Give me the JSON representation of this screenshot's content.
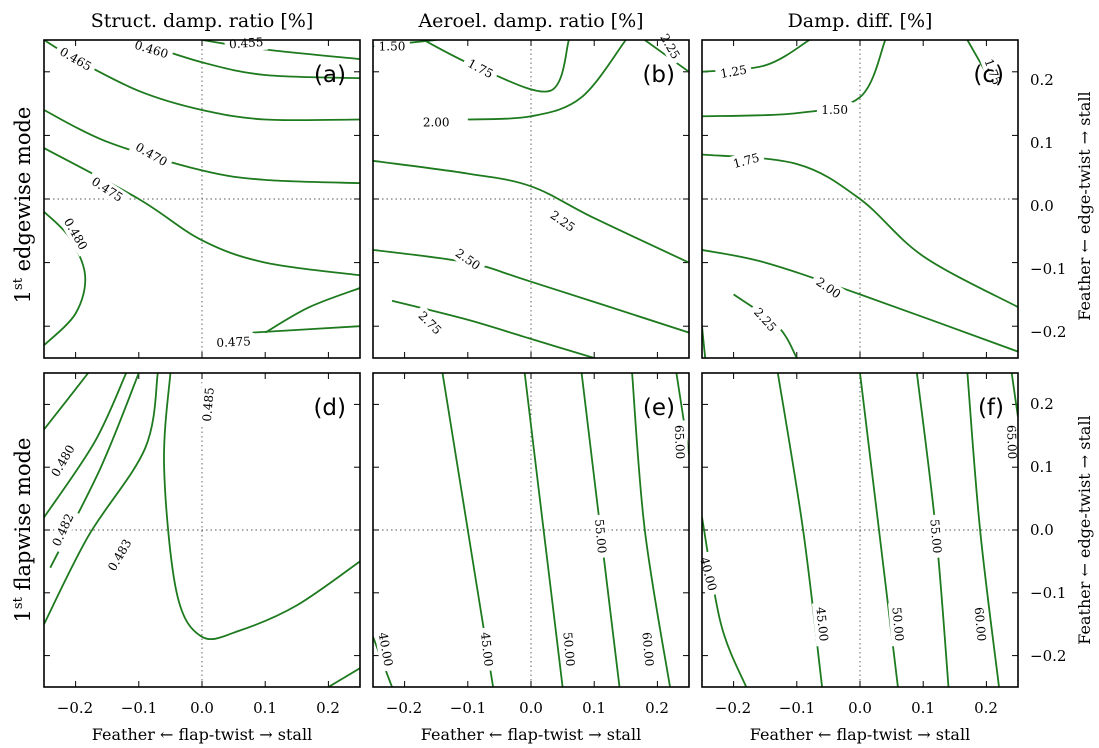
{
  "figure": {
    "column_titles": [
      "Struct. damp. ratio [%]",
      "Aeroel. damp. ratio [%]",
      "Damp. diff. [%]"
    ],
    "row_labels": [
      {
        "main": "1",
        "sup": "st",
        "rest": " edgewise mode"
      },
      {
        "main": "1",
        "sup": "st",
        "rest": " flapwise mode"
      }
    ],
    "xlabel": "Feather ← flap-twist → stall",
    "ylabel": "Feather ← edge-twist → stall",
    "x_tick_labels": [
      "−0.2",
      "−0.1",
      "0.0",
      "0.1",
      "0.2"
    ],
    "y_tick_labels": [
      "0.2",
      "0.1",
      "0.0",
      "−0.1",
      "−0.2"
    ]
  },
  "chart_data": [
    {
      "panel": "(a)",
      "type": "contour",
      "title": "Struct. damp. ratio [%]",
      "ylabel": "1st edgewise mode",
      "xlim": [
        -0.25,
        0.25
      ],
      "ylim": [
        -0.25,
        0.25
      ],
      "color": "#1e7a1e",
      "levels": [
        {
          "label": "0.455",
          "points": [
            [
              0.0,
              0.25
            ],
            [
              0.1,
              0.235
            ],
            [
              0.25,
              0.22
            ]
          ],
          "label_at": [
            0.07,
            0.245
          ],
          "angle": -4
        },
        {
          "label": "0.460",
          "points": [
            [
              -0.11,
              0.25
            ],
            [
              0.0,
              0.215
            ],
            [
              0.1,
              0.195
            ],
            [
              0.25,
              0.19
            ]
          ],
          "label_at": [
            -0.08,
            0.235
          ],
          "angle": 17
        },
        {
          "label": "0.465",
          "points": [
            [
              -0.25,
              0.25
            ],
            [
              -0.2,
              0.22
            ],
            [
              -0.1,
              0.17
            ],
            [
              0.0,
              0.14
            ],
            [
              0.1,
              0.125
            ],
            [
              0.25,
              0.125
            ]
          ],
          "label_at": [
            -0.2,
            0.22
          ],
          "angle": 30
        },
        {
          "label": "0.470",
          "points": [
            [
              -0.25,
              0.14
            ],
            [
              -0.15,
              0.09
            ],
            [
              0.0,
              0.045
            ],
            [
              0.1,
              0.03
            ],
            [
              0.25,
              0.025
            ]
          ],
          "label_at": [
            -0.08,
            0.07
          ],
          "angle": 30
        },
        {
          "label": "0.475",
          "points": [
            [
              -0.25,
              0.08
            ],
            [
              -0.1,
              0.0
            ],
            [
              0.0,
              -0.065
            ],
            [
              0.1,
              -0.1
            ],
            [
              0.25,
              -0.12
            ]
          ],
          "label_at": [
            -0.15,
            0.015
          ],
          "angle": 33
        },
        {
          "label": "0.480",
          "points": [
            [
              -0.25,
              -0.02
            ],
            [
              -0.21,
              -0.06
            ],
            [
              -0.185,
              -0.12
            ],
            [
              -0.2,
              -0.18
            ],
            [
              -0.25,
              -0.23
            ]
          ],
          "label_at": [
            -0.2,
            -0.055
          ],
          "angle": 60
        },
        {
          "label": "0.475",
          "points": [
            [
              0.1,
              -0.21
            ],
            [
              0.17,
              -0.17
            ],
            [
              0.25,
              -0.14
            ]
          ],
          "label_at": [
            0.05,
            -0.225
          ],
          "angle": -3
        },
        {
          "label": "",
          "points": [
            [
              0.08,
              -0.21
            ],
            [
              0.25,
              -0.2
            ]
          ]
        }
      ]
    },
    {
      "panel": "(b)",
      "type": "contour",
      "title": "Aeroel. damp. ratio [%]",
      "xlim": [
        -0.25,
        0.25
      ],
      "ylim": [
        -0.25,
        0.25
      ],
      "color": "#1e7a1e",
      "levels": [
        {
          "label": "1.50",
          "points": [
            [
              -0.25,
              0.24
            ],
            [
              -0.15,
              0.25
            ]
          ],
          "label_at": [
            -0.22,
            0.24
          ],
          "angle": 0
        },
        {
          "label": "1.75",
          "points": [
            [
              -0.17,
              0.25
            ],
            [
              -0.08,
              0.205
            ],
            [
              0.03,
              0.17
            ],
            [
              0.06,
              0.25
            ]
          ],
          "label_at": [
            -0.08,
            0.205
          ],
          "angle": 28
        },
        {
          "label": "2.00",
          "points": [
            [
              -0.1,
              0.125
            ],
            [
              0.0,
              0.13
            ],
            [
              0.08,
              0.16
            ],
            [
              0.15,
              0.25
            ]
          ],
          "label_at": [
            -0.15,
            0.12
          ],
          "angle": 0
        },
        {
          "label": "2.25",
          "points": [
            [
              0.18,
              0.25
            ],
            [
              0.25,
              0.2
            ]
          ],
          "label_at": [
            0.22,
            0.24
          ],
          "angle": 60
        },
        {
          "label": "2.25",
          "points": [
            [
              -0.25,
              0.06
            ],
            [
              -0.1,
              0.04
            ],
            [
              0.0,
              0.02
            ],
            [
              0.1,
              -0.03
            ],
            [
              0.25,
              -0.1
            ]
          ],
          "label_at": [
            0.05,
            -0.035
          ],
          "angle": 35
        },
        {
          "label": "2.50",
          "points": [
            [
              -0.25,
              -0.08
            ],
            [
              -0.1,
              -0.1
            ],
            [
              0.0,
              -0.13
            ],
            [
              0.25,
              -0.21
            ]
          ],
          "label_at": [
            -0.1,
            -0.095
          ],
          "angle": 35
        },
        {
          "label": "2.75",
          "points": [
            [
              -0.22,
              -0.16
            ],
            [
              -0.1,
              -0.19
            ],
            [
              0.0,
              -0.22
            ],
            [
              0.1,
              -0.25
            ]
          ],
          "label_at": [
            -0.16,
            -0.195
          ],
          "angle": 45
        }
      ]
    },
    {
      "panel": "(c)",
      "type": "contour",
      "title": "Damp. diff. [%]",
      "ylabel": "Feather ← edge-twist → stall",
      "xlim": [
        -0.25,
        0.25
      ],
      "ylim": [
        -0.25,
        0.25
      ],
      "color": "#1e7a1e",
      "levels": [
        {
          "label": "1.25",
          "points": [
            [
              -0.25,
              0.2
            ],
            [
              -0.15,
              0.21
            ],
            [
              -0.08,
              0.25
            ]
          ],
          "label_at": [
            -0.2,
            0.2
          ],
          "angle": -10
        },
        {
          "label": "1.50",
          "points": [
            [
              -0.25,
              0.13
            ],
            [
              -0.1,
              0.135
            ],
            [
              0.0,
              0.16
            ],
            [
              0.04,
              0.25
            ]
          ],
          "label_at": [
            -0.04,
            0.14
          ],
          "angle": 0
        },
        {
          "label": "1.75",
          "points": [
            [
              0.17,
              0.25
            ],
            [
              0.21,
              0.18
            ]
          ],
          "label_at": [
            0.21,
            0.2
          ],
          "angle": 70
        },
        {
          "label": "1.75",
          "points": [
            [
              -0.25,
              0.07
            ],
            [
              -0.1,
              0.055
            ],
            [
              0.0,
              0.0
            ],
            [
              0.1,
              -0.09
            ],
            [
              0.25,
              -0.17
            ]
          ],
          "label_at": [
            -0.18,
            0.06
          ],
          "angle": -15
        },
        {
          "label": "2.00",
          "points": [
            [
              -0.25,
              -0.08
            ],
            [
              -0.15,
              -0.1
            ],
            [
              0.0,
              -0.15
            ],
            [
              0.25,
              -0.24
            ]
          ],
          "label_at": [
            -0.05,
            -0.14
          ],
          "angle": 35
        },
        {
          "label": "2.25",
          "points": [
            [
              -0.2,
              -0.15
            ],
            [
              -0.13,
              -0.2
            ],
            [
              -0.1,
              -0.25
            ]
          ],
          "label_at": [
            -0.15,
            -0.19
          ],
          "angle": 48
        },
        {
          "label": "",
          "points": [
            [
              -0.25,
              -0.2
            ],
            [
              -0.245,
              -0.25
            ]
          ]
        }
      ]
    },
    {
      "panel": "(d)",
      "type": "contour",
      "ylabel": "1st flapwise mode",
      "xlabel": "Feather ← flap-twist → stall",
      "xlim": [
        -0.25,
        0.25
      ],
      "ylim": [
        -0.25,
        0.25
      ],
      "color": "#1e7a1e",
      "levels": [
        {
          "label": "",
          "points": [
            [
              -0.25,
              0.16
            ],
            [
              -0.18,
              0.25
            ]
          ]
        },
        {
          "label": "0.480",
          "points": [
            [
              -0.25,
              0.02
            ],
            [
              -0.17,
              0.14
            ],
            [
              -0.12,
              0.25
            ]
          ],
          "label_at": [
            -0.22,
            0.11
          ],
          "angle": -60
        },
        {
          "label": "0.482",
          "points": [
            [
              -0.24,
              -0.06
            ],
            [
              -0.16,
              0.1
            ],
            [
              -0.1,
              0.25
            ]
          ],
          "label_at": [
            -0.22,
            0.0
          ],
          "angle": -65
        },
        {
          "label": "0.483",
          "points": [
            [
              -0.25,
              -0.15
            ],
            [
              -0.18,
              -0.01
            ],
            [
              -0.09,
              0.13
            ],
            [
              -0.07,
              0.25
            ]
          ],
          "label_at": [
            -0.13,
            -0.04
          ],
          "angle": -60
        },
        {
          "label": "0.485",
          "points": [
            [
              -0.05,
              0.25
            ],
            [
              -0.06,
              0.1
            ],
            [
              -0.04,
              -0.1
            ],
            [
              0.0,
              -0.17
            ],
            [
              0.06,
              -0.16
            ],
            [
              0.15,
              -0.12
            ],
            [
              0.25,
              -0.05
            ]
          ],
          "label_at": [
            0.01,
            0.2
          ],
          "angle": -85
        },
        {
          "label": "",
          "points": [
            [
              0.2,
              -0.25
            ],
            [
              0.25,
              -0.22
            ]
          ]
        }
      ]
    },
    {
      "panel": "(e)",
      "type": "contour",
      "xlabel": "Feather ← flap-twist → stall",
      "xlim": [
        -0.25,
        0.25
      ],
      "ylim": [
        -0.25,
        0.25
      ],
      "color": "#1e7a1e",
      "levels": [
        {
          "label": "40.00",
          "points": [
            [
              -0.25,
              -0.17
            ],
            [
              -0.22,
              -0.25
            ]
          ],
          "label_at": [
            -0.23,
            -0.19
          ],
          "angle": 80
        },
        {
          "label": "45.00",
          "points": [
            [
              -0.14,
              0.25
            ],
            [
              -0.1,
              0.0
            ],
            [
              -0.06,
              -0.25
            ]
          ],
          "label_at": [
            -0.07,
            -0.19
          ],
          "angle": 84
        },
        {
          "label": "50.00",
          "points": [
            [
              -0.01,
              0.25
            ],
            [
              0.02,
              0.0
            ],
            [
              0.05,
              -0.25
            ]
          ],
          "label_at": [
            0.06,
            -0.19
          ],
          "angle": 85
        },
        {
          "label": "55.00",
          "points": [
            [
              0.08,
              0.25
            ],
            [
              0.11,
              0.0
            ],
            [
              0.14,
              -0.25
            ]
          ],
          "label_at": [
            0.11,
            -0.01
          ],
          "angle": 85
        },
        {
          "label": "60.00",
          "points": [
            [
              0.16,
              0.25
            ],
            [
              0.18,
              0.0
            ],
            [
              0.22,
              -0.25
            ]
          ],
          "label_at": [
            0.185,
            -0.19
          ],
          "angle": 85
        },
        {
          "label": "65.00",
          "points": [
            [
              0.23,
              0.25
            ],
            [
              0.25,
              0.12
            ]
          ],
          "label_at": [
            0.235,
            0.14
          ],
          "angle": 88
        }
      ]
    },
    {
      "panel": "(f)",
      "type": "contour",
      "ylabel": "Feather ← edge-twist → stall",
      "xlabel": "Feather ← flap-twist → stall",
      "xlim": [
        -0.25,
        0.25
      ],
      "ylim": [
        -0.25,
        0.25
      ],
      "color": "#1e7a1e",
      "levels": [
        {
          "label": "40.00",
          "points": [
            [
              -0.25,
              0.02
            ],
            [
              -0.22,
              -0.15
            ],
            [
              -0.18,
              -0.25
            ]
          ],
          "label_at": [
            -0.24,
            -0.07
          ],
          "angle": 75
        },
        {
          "label": "45.00",
          "points": [
            [
              -0.13,
              0.25
            ],
            [
              -0.09,
              0.0
            ],
            [
              -0.06,
              -0.25
            ]
          ],
          "label_at": [
            -0.06,
            -0.15
          ],
          "angle": 84
        },
        {
          "label": "50.00",
          "points": [
            [
              0.0,
              0.25
            ],
            [
              0.03,
              0.0
            ],
            [
              0.06,
              -0.25
            ]
          ],
          "label_at": [
            0.06,
            -0.15
          ],
          "angle": 85
        },
        {
          "label": "55.00",
          "points": [
            [
              0.09,
              0.25
            ],
            [
              0.12,
              0.0
            ],
            [
              0.14,
              -0.25
            ]
          ],
          "label_at": [
            0.12,
            -0.01
          ],
          "angle": 85
        },
        {
          "label": "60.00",
          "points": [
            [
              0.17,
              0.25
            ],
            [
              0.19,
              0.0
            ],
            [
              0.22,
              -0.25
            ]
          ],
          "label_at": [
            0.19,
            -0.15
          ],
          "angle": 85
        },
        {
          "label": "65.00",
          "points": [
            [
              0.24,
              0.25
            ],
            [
              0.25,
              0.18
            ]
          ],
          "label_at": [
            0.24,
            0.14
          ],
          "angle": 88
        }
      ]
    }
  ]
}
